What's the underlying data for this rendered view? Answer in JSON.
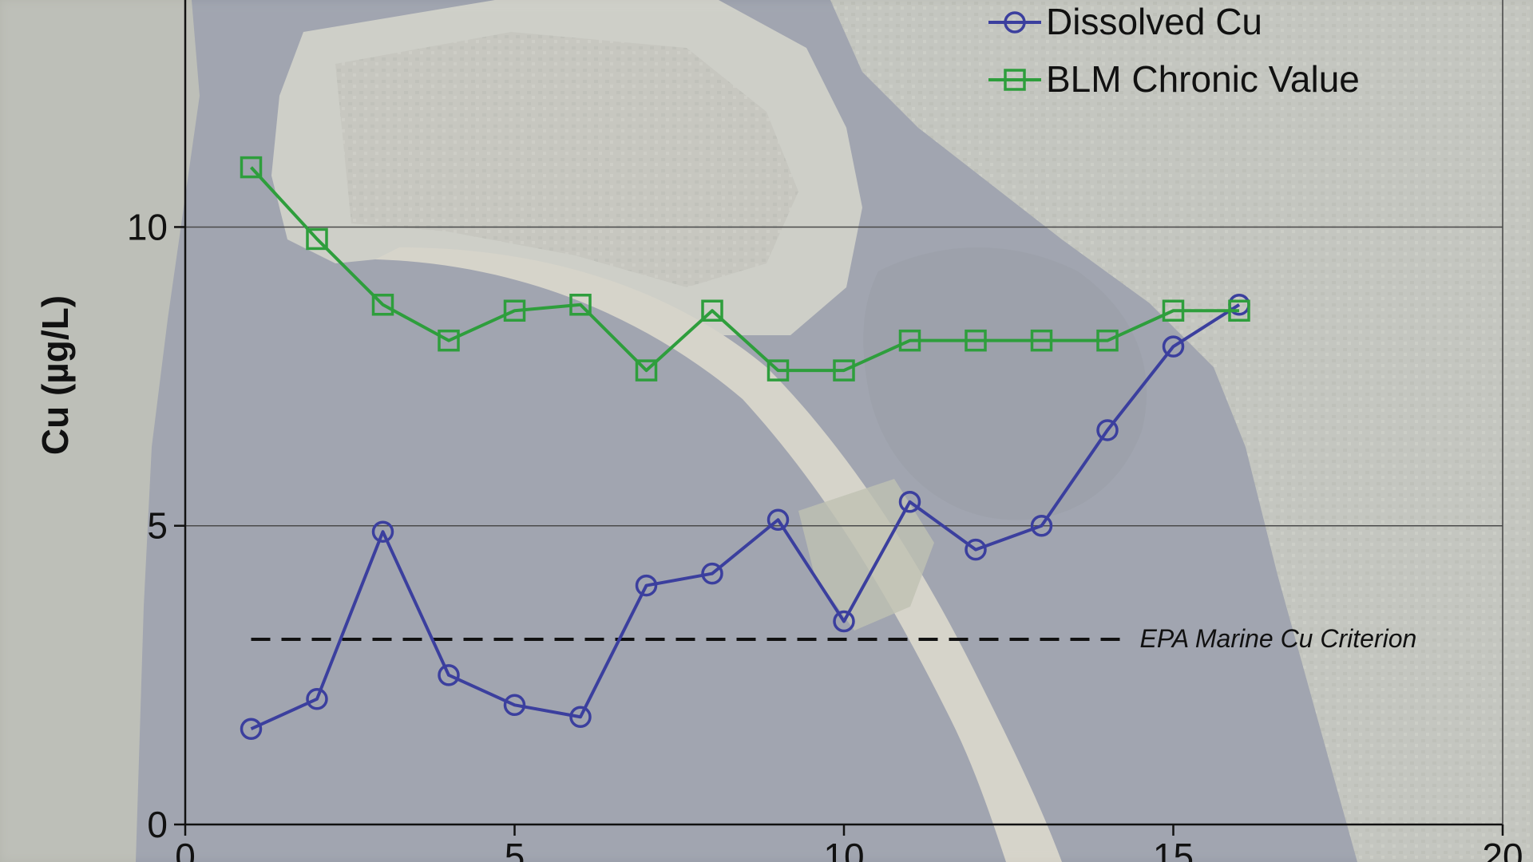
{
  "chart_data": {
    "type": "line",
    "ylabel": "Cu (µg/L)",
    "xlim": [
      0,
      20
    ],
    "ylim": [
      0,
      13.8
    ],
    "x_ticks": [
      0,
      5,
      10,
      15,
      20
    ],
    "y_ticks": [
      0,
      5,
      10
    ],
    "x_tick_labels": [
      "0",
      "5",
      "10",
      "15",
      "20"
    ],
    "y_tick_labels": [
      "0",
      "5",
      "10"
    ],
    "grid": "horizontal",
    "legend_position": "top-right",
    "series": [
      {
        "name": "Dissolved Cu",
        "marker": "circle",
        "color": "#3b3f9e",
        "x": [
          1,
          2,
          3,
          4,
          5,
          6,
          7,
          8,
          9,
          10,
          11,
          12,
          13,
          14,
          15,
          16
        ],
        "y": [
          1.6,
          2.1,
          4.9,
          2.5,
          2.0,
          1.8,
          4.0,
          4.2,
          5.1,
          3.4,
          5.4,
          4.6,
          5.0,
          6.6,
          8.0,
          8.7
        ]
      },
      {
        "name": "BLM Chronic Value",
        "marker": "square",
        "color": "#2e9e3c",
        "x": [
          1,
          2,
          3,
          4,
          5,
          6,
          7,
          8,
          9,
          10,
          11,
          12,
          13,
          14,
          15,
          16
        ],
        "y": [
          11.0,
          9.8,
          8.7,
          8.1,
          8.6,
          8.7,
          7.6,
          8.6,
          7.6,
          7.6,
          8.1,
          8.1,
          8.1,
          8.1,
          8.6,
          8.6
        ]
      }
    ],
    "reference_line": {
      "label": "EPA Marine Cu Criterion",
      "y": 3.1,
      "x_range": [
        1,
        14.2
      ],
      "style": "dashed",
      "color": "#111111"
    }
  },
  "background": {
    "kind": "aerial photo of a coastal bay and peninsula",
    "water_color": "#9499a5",
    "land_color": "#bdc0b8"
  }
}
